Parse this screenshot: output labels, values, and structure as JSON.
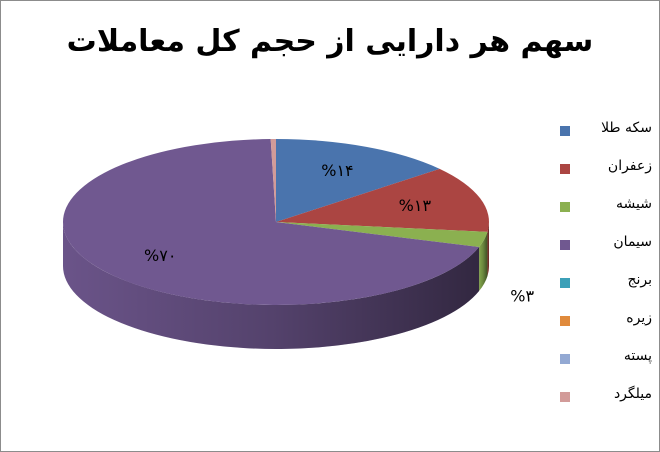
{
  "chart_data": {
    "type": "pie",
    "title": "سهم هر دارایی از حجم کل معاملات",
    "three_d": true,
    "legend_position": "right",
    "slices": [
      {
        "label": "سکه طلا",
        "value": 14,
        "display": "%۱۴",
        "color": "#4a74ad"
      },
      {
        "label": "زعفران",
        "value": 13,
        "display": "%۱۳",
        "color": "#ab4542"
      },
      {
        "label": "شیشه",
        "value": 3,
        "display": "%۳",
        "color": "#8bb050"
      },
      {
        "label": "سیمان",
        "value": 70,
        "display": "%۷۰",
        "color": "#705890"
      },
      {
        "label": "برنج",
        "value": 0,
        "display": "",
        "color": "#3ca0b8"
      },
      {
        "label": "زیره",
        "value": 0,
        "display": "",
        "color": "#e08a3c"
      },
      {
        "label": "پسته",
        "value": 0,
        "display": "",
        "color": "#93a9d3"
      },
      {
        "label": "میلگرد",
        "value": 0.4,
        "display": "",
        "color": "#d29b99"
      }
    ]
  }
}
